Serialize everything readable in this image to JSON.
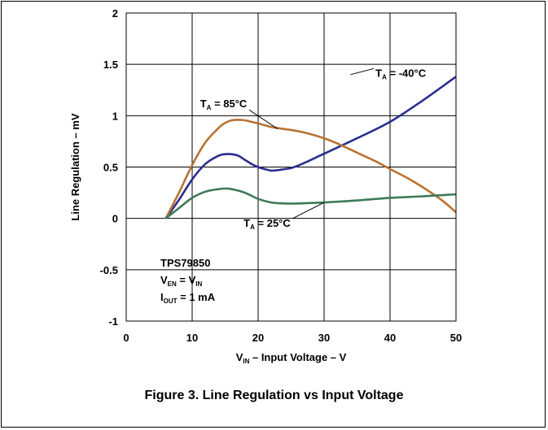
{
  "caption": "Figure 3. Line Regulation vs Input Voltage",
  "chart_data": {
    "type": "line",
    "title": "",
    "xlabel": {
      "main": "V",
      "sub": "IN",
      "rest": " – Input Voltage – V"
    },
    "ylabel": "Line Regulation – mV",
    "xlim": [
      0,
      50
    ],
    "ylim": [
      -1,
      2
    ],
    "xticks": [
      0,
      10,
      20,
      30,
      40,
      50
    ],
    "yticks": [
      -1,
      -0.5,
      0,
      0.5,
      1,
      1.5,
      2
    ],
    "xtick_labels": [
      "0",
      "10",
      "20",
      "30",
      "40",
      "50"
    ],
    "ytick_labels": [
      "-1",
      "-0.5",
      "0",
      "0.5",
      "1",
      "1.5",
      "2"
    ],
    "grid": true,
    "series": [
      {
        "name": "T_A = -40°C",
        "color": "#2b2f8f",
        "x": [
          6,
          8,
          10,
          12,
          14,
          15,
          16,
          17,
          18,
          19,
          20,
          21,
          22,
          23,
          24,
          25,
          27,
          30,
          35,
          40,
          45,
          50
        ],
        "y": [
          0,
          0.18,
          0.38,
          0.53,
          0.61,
          0.625,
          0.625,
          0.61,
          0.57,
          0.53,
          0.5,
          0.48,
          0.465,
          0.47,
          0.48,
          0.49,
          0.54,
          0.63,
          0.78,
          0.94,
          1.15,
          1.38
        ]
      },
      {
        "name": "T_A = 85°C",
        "color": "#b87333",
        "x": [
          6,
          8,
          10,
          12,
          14,
          15,
          16,
          17,
          18,
          19,
          20,
          22,
          24,
          26,
          28,
          30,
          32,
          35,
          38,
          40,
          43,
          46,
          48,
          50
        ],
        "y": [
          0,
          0.25,
          0.52,
          0.74,
          0.88,
          0.93,
          0.955,
          0.96,
          0.955,
          0.94,
          0.925,
          0.89,
          0.87,
          0.85,
          0.82,
          0.78,
          0.73,
          0.64,
          0.55,
          0.48,
          0.38,
          0.26,
          0.17,
          0.06
        ]
      },
      {
        "name": "T_A = 25°C",
        "color": "#3e7a57",
        "x": [
          6,
          8,
          10,
          12,
          14,
          15,
          16,
          18,
          20,
          22,
          24,
          26,
          28,
          30,
          35,
          40,
          45,
          50
        ],
        "y": [
          0,
          0.1,
          0.2,
          0.26,
          0.285,
          0.29,
          0.285,
          0.25,
          0.19,
          0.155,
          0.145,
          0.145,
          0.15,
          0.155,
          0.175,
          0.2,
          0.215,
          0.235
        ]
      }
    ],
    "annotations": [
      {
        "main": "T",
        "sub": "A",
        "rest": " = -40°C",
        "series": 0,
        "x": 34,
        "y": 1.4,
        "tx": 37.8,
        "ty": 1.38,
        "anchor": "start"
      },
      {
        "main": "T",
        "sub": "A",
        "rest": " = 85°C",
        "series": 1,
        "x": 23,
        "y": 0.87,
        "tx": 11.2,
        "ty": 1.08,
        "anchor": "start"
      },
      {
        "main": "T",
        "sub": "A",
        "rest": " = 25°C",
        "series": 2,
        "x": 30,
        "y": 0.155,
        "tx": 17.8,
        "ty": -0.08,
        "anchor": "start"
      }
    ],
    "inset_lines": [
      {
        "main": "TPS79850",
        "sub": "",
        "rest": ""
      },
      {
        "main": "V",
        "sub": "EN",
        "rest": " = V",
        "sub2": "IN"
      },
      {
        "main": "I",
        "sub": "OUT",
        "rest": " = 1 mA"
      }
    ]
  }
}
